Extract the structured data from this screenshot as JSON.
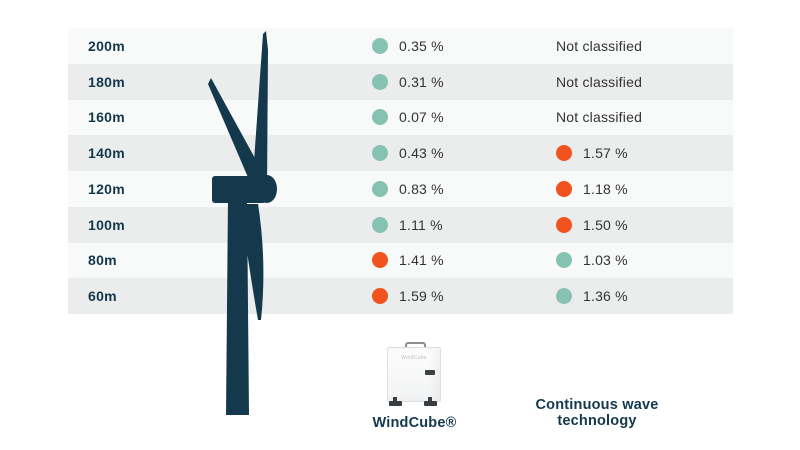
{
  "colors": {
    "navy": "#14384C",
    "teal": "#86C2B2",
    "orange": "#F0531E",
    "row_light": "#F8F9F9",
    "row_dark": "#EBECEC",
    "value_text": "#333333"
  },
  "chart_data": {
    "type": "table",
    "title": "",
    "categories": [
      "200m",
      "180m",
      "160m",
      "140m",
      "120m",
      "100m",
      "80m",
      "60m"
    ],
    "series": [
      {
        "name": "WindCube®",
        "values": [
          "0.35 %",
          "0.31 %",
          "0.07 %",
          "0.43 %",
          "0.83 %",
          "1.11 %",
          "1.41 %",
          "1.59 %"
        ],
        "dot_colors": [
          "teal",
          "teal",
          "teal",
          "teal",
          "teal",
          "teal",
          "orange",
          "orange"
        ]
      },
      {
        "name": "Continuous wave technology",
        "values": [
          "Not classified",
          "Not classified",
          "Not classified",
          "1.57 %",
          "1.18 %",
          "1.50 %",
          "1.03 %",
          "1.36 %"
        ],
        "dot_colors": [
          null,
          null,
          null,
          "orange",
          "orange",
          "orange",
          "teal",
          "teal"
        ]
      }
    ],
    "legend_position": "bottom"
  },
  "legend": {
    "windcube_label": "WindCube®",
    "cw_label_line1": "Continuous wave",
    "cw_label_line2": "technology",
    "device_brand_text": "WindCube"
  },
  "icons": {
    "turbine": "wind-turbine-silhouette",
    "device": "windcube-lidar-device"
  }
}
